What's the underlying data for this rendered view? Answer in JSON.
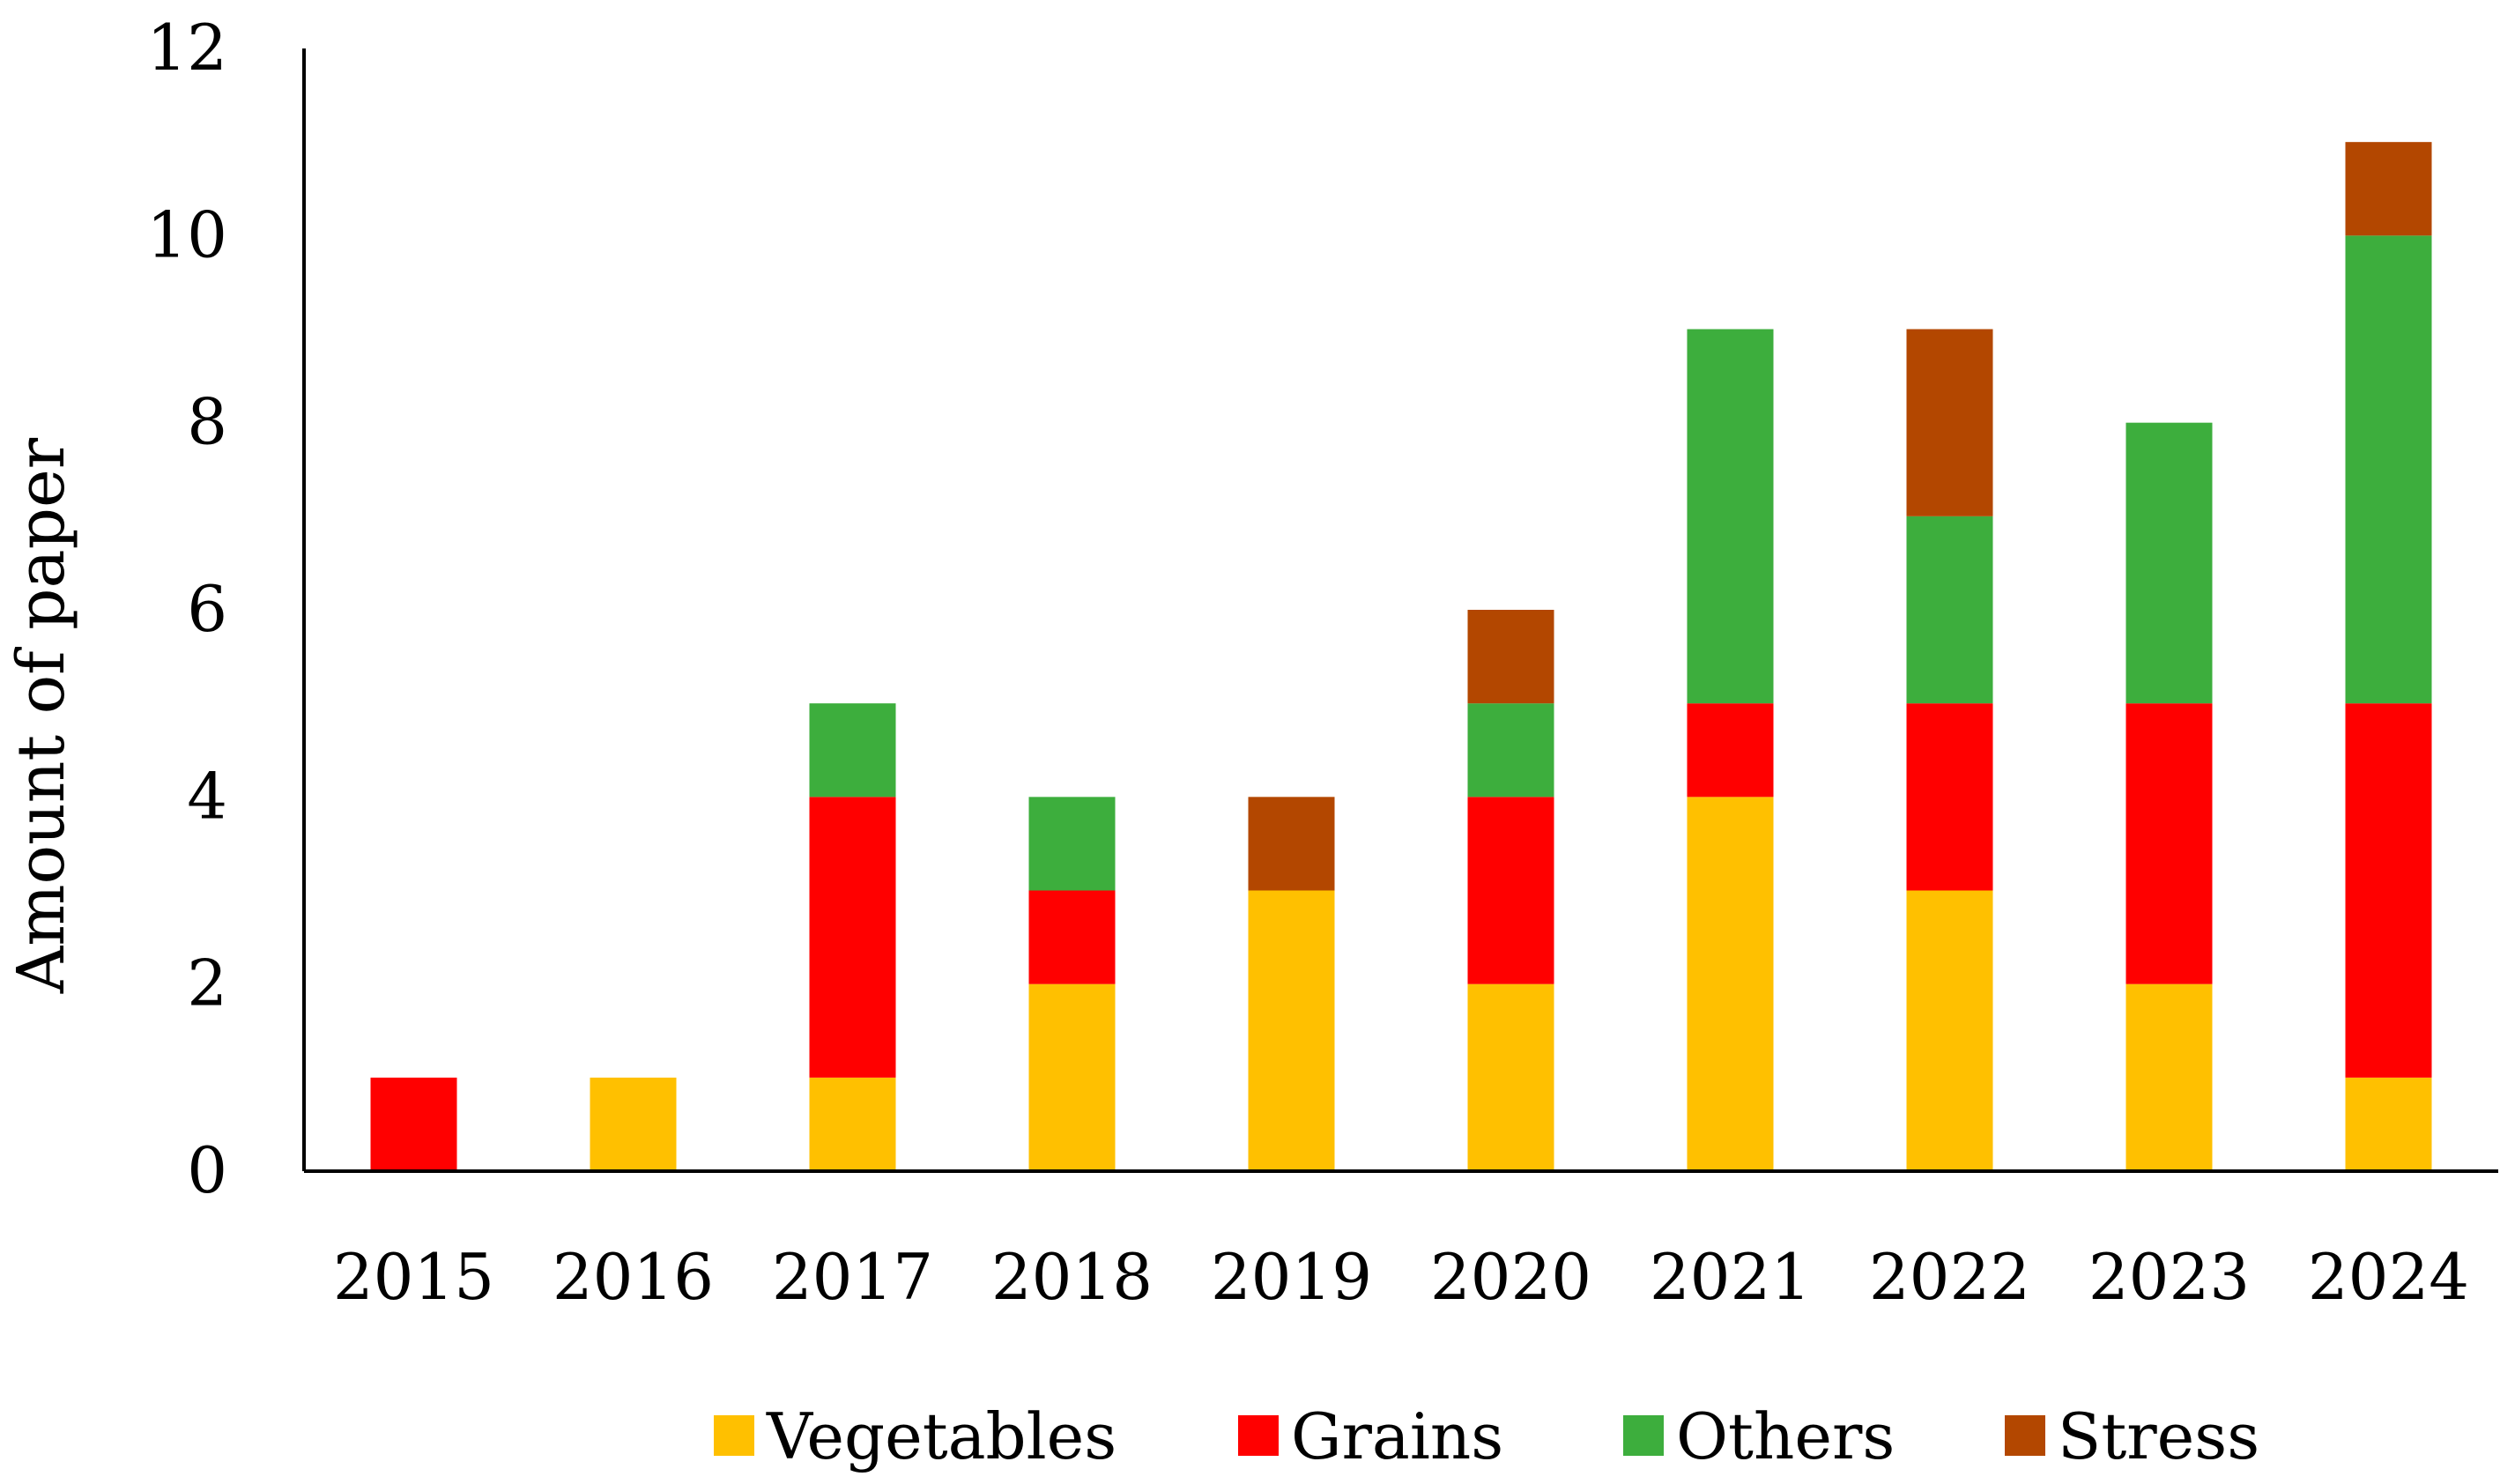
{
  "chart_data": {
    "type": "bar",
    "stacked": true,
    "title": "",
    "xlabel": "",
    "ylabel": "Amount of paper",
    "ylim": [
      0,
      12
    ],
    "yticks": [
      0,
      2,
      4,
      6,
      8,
      10,
      12
    ],
    "categories": [
      "2015",
      "2016",
      "2017",
      "2018",
      "2019",
      "2020",
      "2021",
      "2022",
      "2023",
      "2024"
    ],
    "series": [
      {
        "name": "Vegetables",
        "color": "#FFC000",
        "values": [
          0,
          1,
          1,
          2,
          3,
          2,
          4,
          3,
          2,
          1
        ]
      },
      {
        "name": "Grains",
        "color": "#FF0000",
        "values": [
          1,
          0,
          3,
          1,
          0,
          2,
          1,
          2,
          3,
          4
        ]
      },
      {
        "name": "Others",
        "color": "#3DAE3D",
        "values": [
          0,
          0,
          1,
          1,
          0,
          1,
          4,
          2,
          3,
          5
        ]
      },
      {
        "name": "Stress",
        "color": "#B34700",
        "values": [
          0,
          0,
          0,
          0,
          1,
          1,
          0,
          2,
          0,
          1
        ]
      }
    ],
    "grid": false,
    "legend_position": "bottom"
  }
}
